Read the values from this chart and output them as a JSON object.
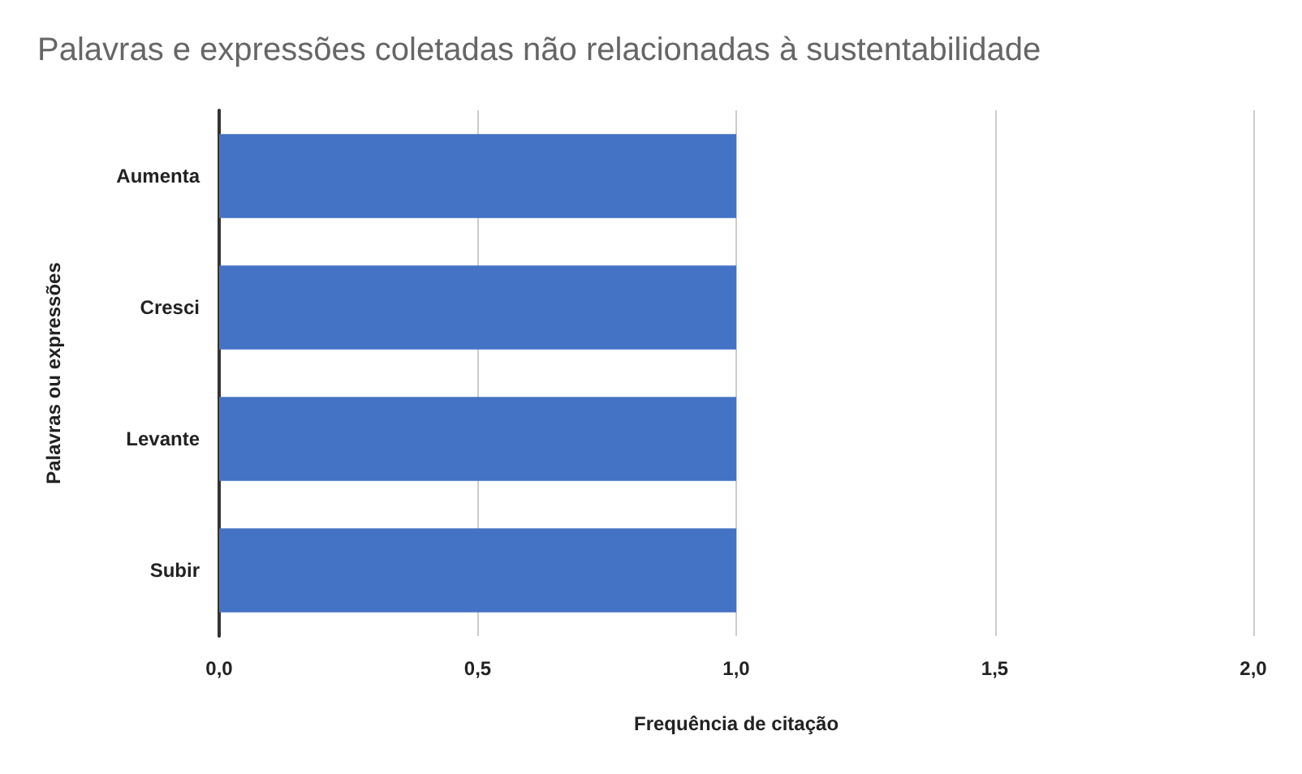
{
  "chart_data": {
    "type": "bar",
    "orientation": "horizontal",
    "title": "Palavras e expressões coletadas não relacionadas à sustentabilidade",
    "xlabel": "Frequência de citação",
    "ylabel": "Palavras ou expressões",
    "categories": [
      "Aumenta",
      "Cresci",
      "Levante",
      "Subir"
    ],
    "values": [
      1,
      1,
      1,
      1
    ],
    "color": "#4472c4",
    "xlim": [
      0,
      2
    ],
    "xticks": [
      {
        "value": 0,
        "label": "0,0"
      },
      {
        "value": 0.5,
        "label": "0,5"
      },
      {
        "value": 1,
        "label": "1,0"
      },
      {
        "value": 1.5,
        "label": "1,5"
      },
      {
        "value": 2,
        "label": "2,0"
      }
    ],
    "grid": "x"
  }
}
